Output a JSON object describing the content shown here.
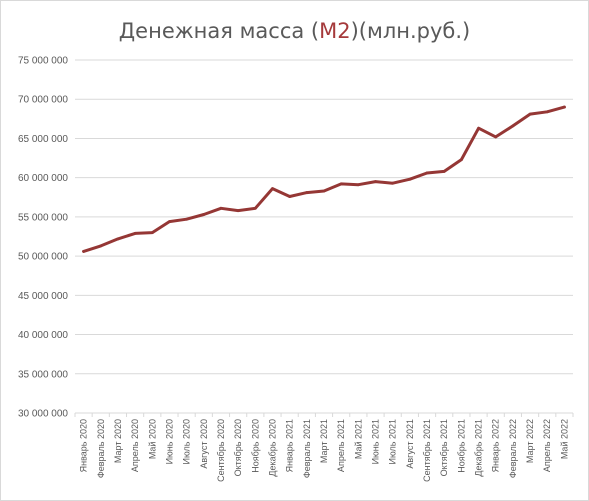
{
  "chart_data": {
    "type": "line",
    "title_parts": [
      "Денежная масса (",
      "М2",
      ")(млн.руб.)"
    ],
    "xlabel": "",
    "ylabel": "",
    "ylim": [
      30000000,
      75000000
    ],
    "yticks": [
      30000000,
      35000000,
      40000000,
      45000000,
      50000000,
      55000000,
      60000000,
      65000000,
      70000000,
      75000000
    ],
    "ytick_labels": [
      "30 000 000",
      "35 000 000",
      "40 000 000",
      "45 000 000",
      "50 000 000",
      "55 000 000",
      "60 000 000",
      "65 000 000",
      "70 000 000",
      "75 000 000"
    ],
    "grid": true,
    "legend": "none",
    "colors": {
      "line": "#953735",
      "title_accent": "#a5393b",
      "grid": "#d9d9d9",
      "text": "#595959"
    },
    "categories": [
      "Январь 2020",
      "Февраль 2020",
      "Март 2020",
      "Апрель 2020",
      "Май 2020",
      "Июнь 2020",
      "Июль 2020",
      "Август 2020",
      "Сентябрь 2020",
      "Октябрь 2020",
      "Ноябрь 2020",
      "Декабрь 2020",
      "Январь 2021",
      "Февраль 2021",
      "Март 2021",
      "Апрель 2021",
      "Май 2021",
      "Июнь 2021",
      "Июль 2021",
      "Август 2021",
      "Сентябрь 2021",
      "Октябрь 2021",
      "Ноябрь 2021",
      "Декабрь 2021",
      "Январь 2022",
      "Февраль 2022",
      "Март 2022",
      "Апрель 2022",
      "Май 2022"
    ],
    "series": [
      {
        "values": [
          50600000,
          51300000,
          52200000,
          52900000,
          53000000,
          54400000,
          54700000,
          55300000,
          56100000,
          55800000,
          56100000,
          58600000,
          57600000,
          58100000,
          58300000,
          59200000,
          59100000,
          59500000,
          59300000,
          59800000,
          60600000,
          60800000,
          62300000,
          66300000,
          65200000,
          66600000,
          68100000,
          68400000,
          69000000
        ]
      }
    ]
  }
}
